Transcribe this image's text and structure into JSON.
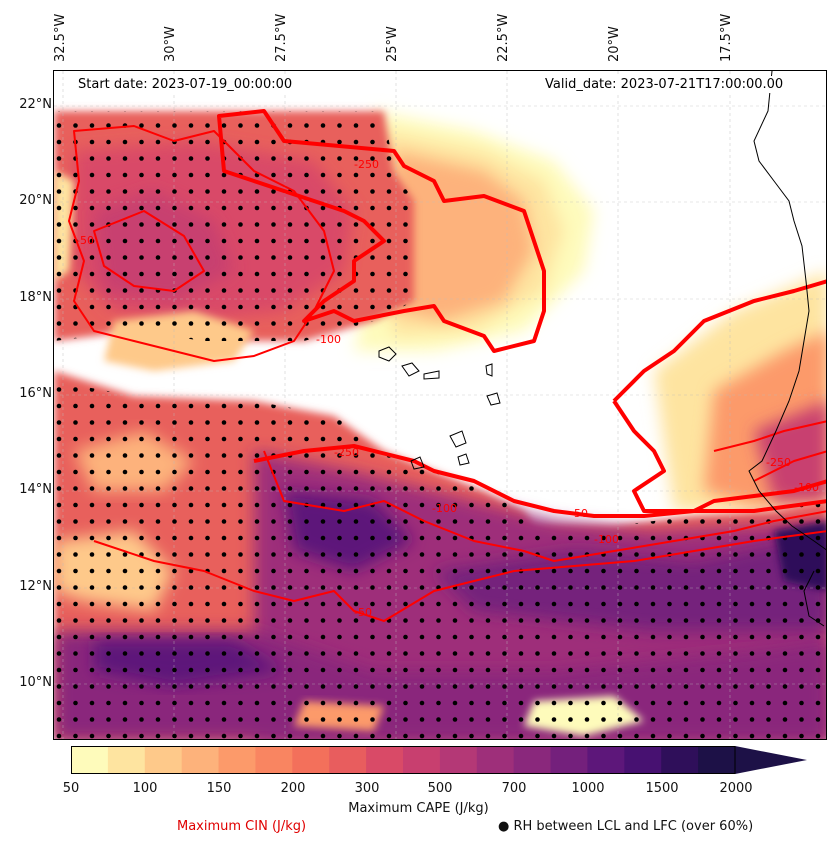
{
  "header": {
    "start_date": "Start date: 2023-07-19_00:00:00",
    "valid_date": "Valid_date: 2023-07-21T17:00:00.00"
  },
  "axes": {
    "longitude_labels": [
      "32.5°W",
      "30°W",
      "27.5°W",
      "25°W",
      "22.5°W",
      "20°W",
      "17.5°W"
    ],
    "latitude_labels": [
      "22°N",
      "20°N",
      "18°N",
      "16°N",
      "14°N",
      "12°N",
      "10°N"
    ]
  },
  "contour_labels": [
    "-250",
    "-100",
    "-50",
    "-100",
    "-50",
    "-100",
    "-250",
    "-50",
    "-250",
    "-100"
  ],
  "colorbar": {
    "tick_labels": [
      "50",
      "100",
      "150",
      "200",
      "300",
      "500",
      "700",
      "1000",
      "1500",
      "2000"
    ],
    "label": "Maximum CAPE (J/kg)",
    "colors": [
      "#fefbbb",
      "#fee4a0",
      "#fec98a",
      "#fdb27b",
      "#fc9a6a",
      "#f98561",
      "#f3705b",
      "#e85d5e",
      "#d94a67",
      "#c83f6f",
      "#b43876",
      "#9e2f7a",
      "#8a287c",
      "#74207c",
      "#5d177a",
      "#471171",
      "#2f0f5a",
      "#1d1147"
    ]
  },
  "legend": {
    "cin_label": "Maximum CIN (J/kg)",
    "rh_label": "● RH between LCL and LFC (over 60%)"
  },
  "style": {
    "cin_color": "#ff0000",
    "coast_color": "#000000"
  }
}
